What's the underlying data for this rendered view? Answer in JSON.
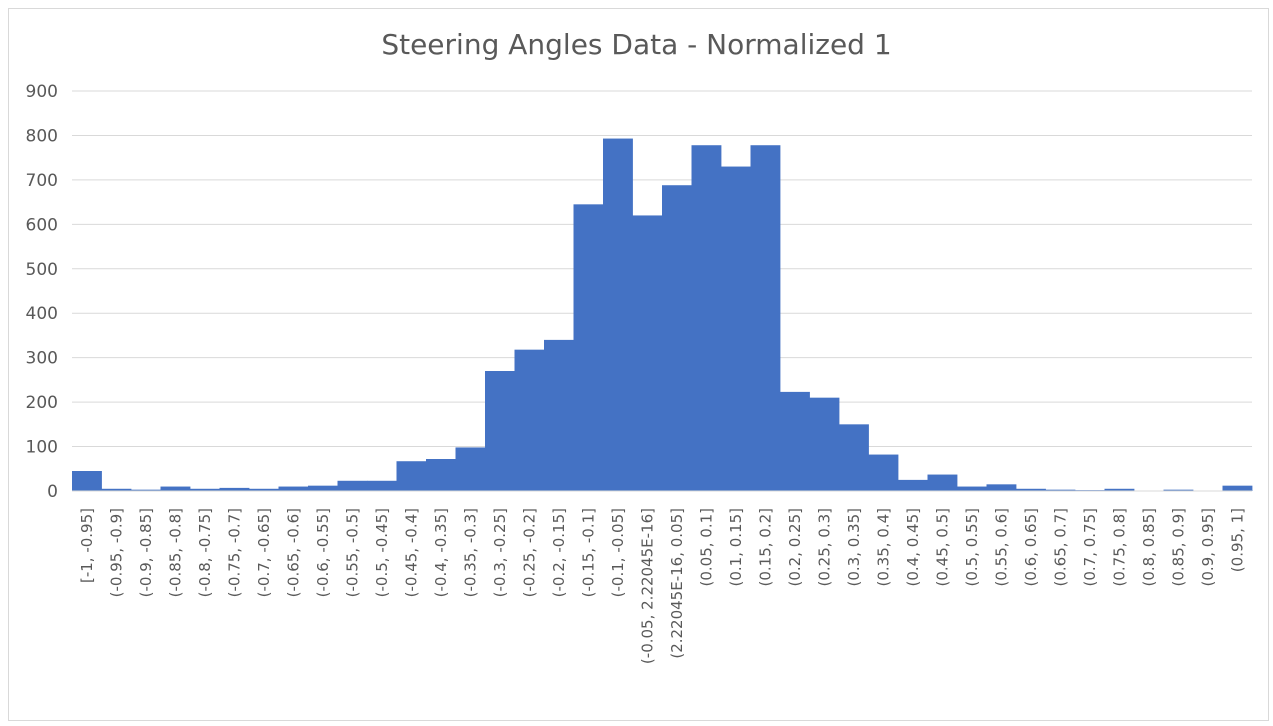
{
  "chart_data": {
    "type": "bar",
    "title": "Steering Angles Data - Normalized 1",
    "xlabel": "",
    "ylabel": "",
    "ylim": [
      0,
      900
    ],
    "yticks": [
      0,
      100,
      200,
      300,
      400,
      500,
      600,
      700,
      800,
      900
    ],
    "grid": true,
    "bar_color": "#4472c4",
    "categories": [
      "[-1, -0.95]",
      "(-0.95, -0.9]",
      "(-0.9, -0.85]",
      "(-0.85, -0.8]",
      "(-0.8, -0.75]",
      "(-0.75, -0.7]",
      "(-0.7, -0.65]",
      "(-0.65, -0.6]",
      "(-0.6, -0.55]",
      "(-0.55, -0.5]",
      "(-0.5, -0.45]",
      "(-0.45, -0.4]",
      "(-0.4, -0.35]",
      "(-0.35, -0.3]",
      "(-0.3, -0.25]",
      "(-0.25, -0.2]",
      "(-0.2, -0.15]",
      "(-0.15, -0.1]",
      "(-0.1, -0.05]",
      "(-0.05, 2.22045E-16]",
      "(2.22045E-16, 0.05]",
      "(0.05, 0.1]",
      "(0.1, 0.15]",
      "(0.15, 0.2]",
      "(0.2, 0.25]",
      "(0.25, 0.3]",
      "(0.3, 0.35]",
      "(0.35, 0.4]",
      "(0.4, 0.45]",
      "(0.45, 0.5]",
      "(0.5, 0.55]",
      "(0.55, 0.6]",
      "(0.6, 0.65]",
      "(0.65, 0.7]",
      "(0.7, 0.75]",
      "(0.75, 0.8]",
      "(0.8, 0.85]",
      "(0.85, 0.9]",
      "(0.9, 0.95]",
      "(0.95, 1]"
    ],
    "values": [
      45,
      5,
      3,
      10,
      5,
      7,
      5,
      10,
      12,
      23,
      23,
      67,
      72,
      98,
      270,
      318,
      340,
      645,
      793,
      620,
      688,
      778,
      730,
      778,
      223,
      210,
      150,
      82,
      25,
      37,
      10,
      15,
      5,
      3,
      2,
      5,
      1,
      3,
      1,
      12
    ]
  }
}
